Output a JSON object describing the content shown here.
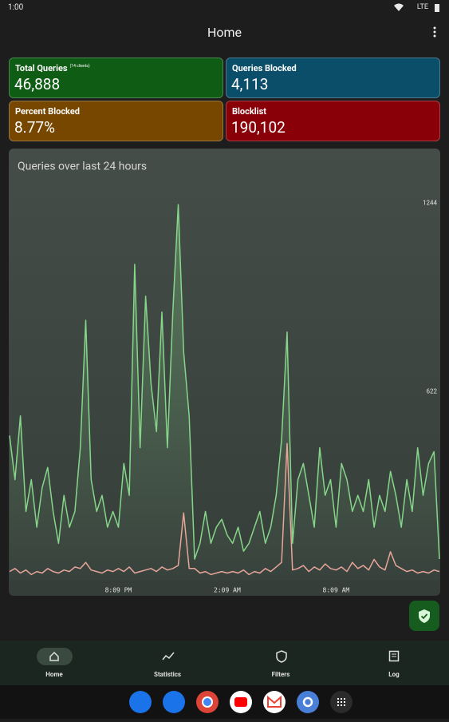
{
  "status_bar": {
    "time": "1:00",
    "network": "LTE"
  },
  "app_bar": {
    "title": "Home"
  },
  "cards": [
    {
      "label": "Total Queries",
      "sublabel": "(14 clients)",
      "value": "46,888"
    },
    {
      "label": "Queries Blocked",
      "value": "4,113"
    },
    {
      "label": "Percent Blocked",
      "value": "8.77%"
    },
    {
      "label": "Blocklist",
      "value": "190,102"
    }
  ],
  "chart_data": {
    "type": "line",
    "title": "Queries over last 24 hours",
    "xlim": [
      0,
      79
    ],
    "xticks": [
      {
        "value": 20,
        "label": "8:09 PM"
      },
      {
        "value": 40,
        "label": "2:09 AM"
      },
      {
        "value": 60,
        "label": "8:09 AM"
      }
    ],
    "ylim": [
      0,
      1300
    ],
    "yticks": [
      622,
      1244
    ],
    "grid": false,
    "series": [
      {
        "color": "#86d68a",
        "values": [
          478,
          333,
          543,
          228,
          333,
          176,
          307,
          373,
          228,
          123,
          281,
          176,
          228,
          438,
          858,
          333,
          228,
          281,
          176,
          228,
          176,
          386,
          281,
          1042,
          438,
          937,
          648,
          491,
          885,
          438,
          885,
          1239,
          753,
          543,
          71,
          123,
          228,
          123,
          176,
          202,
          150,
          123,
          176,
          97,
          123,
          176,
          228,
          123,
          176,
          281,
          465,
          819,
          123,
          333,
          386,
          281,
          176,
          438,
          281,
          333,
          176,
          386,
          333,
          228,
          281,
          228,
          333,
          176,
          281,
          228,
          360,
          281,
          176,
          333,
          228,
          438,
          281,
          386,
          425,
          71
        ]
      },
      {
        "color": "#e8a59a",
        "values": [
          30,
          40,
          25,
          35,
          20,
          30,
          25,
          40,
          30,
          25,
          35,
          30,
          45,
          40,
          60,
          35,
          30,
          25,
          35,
          30,
          40,
          30,
          45,
          25,
          30,
          35,
          40,
          30,
          45,
          35,
          40,
          50,
          223,
          40,
          40,
          25,
          30,
          20,
          25,
          30,
          25,
          30,
          25,
          35,
          20,
          30,
          25,
          40,
          30,
          45,
          60,
          452,
          35,
          40,
          50,
          30,
          45,
          35,
          55,
          40,
          35,
          45,
          30,
          60,
          40,
          50,
          35,
          70,
          45,
          35,
          95,
          50,
          40,
          30,
          35,
          25,
          30,
          25,
          35,
          30
        ]
      }
    ]
  },
  "nav": [
    "Home",
    "Statistics",
    "Filters",
    "Log"
  ]
}
